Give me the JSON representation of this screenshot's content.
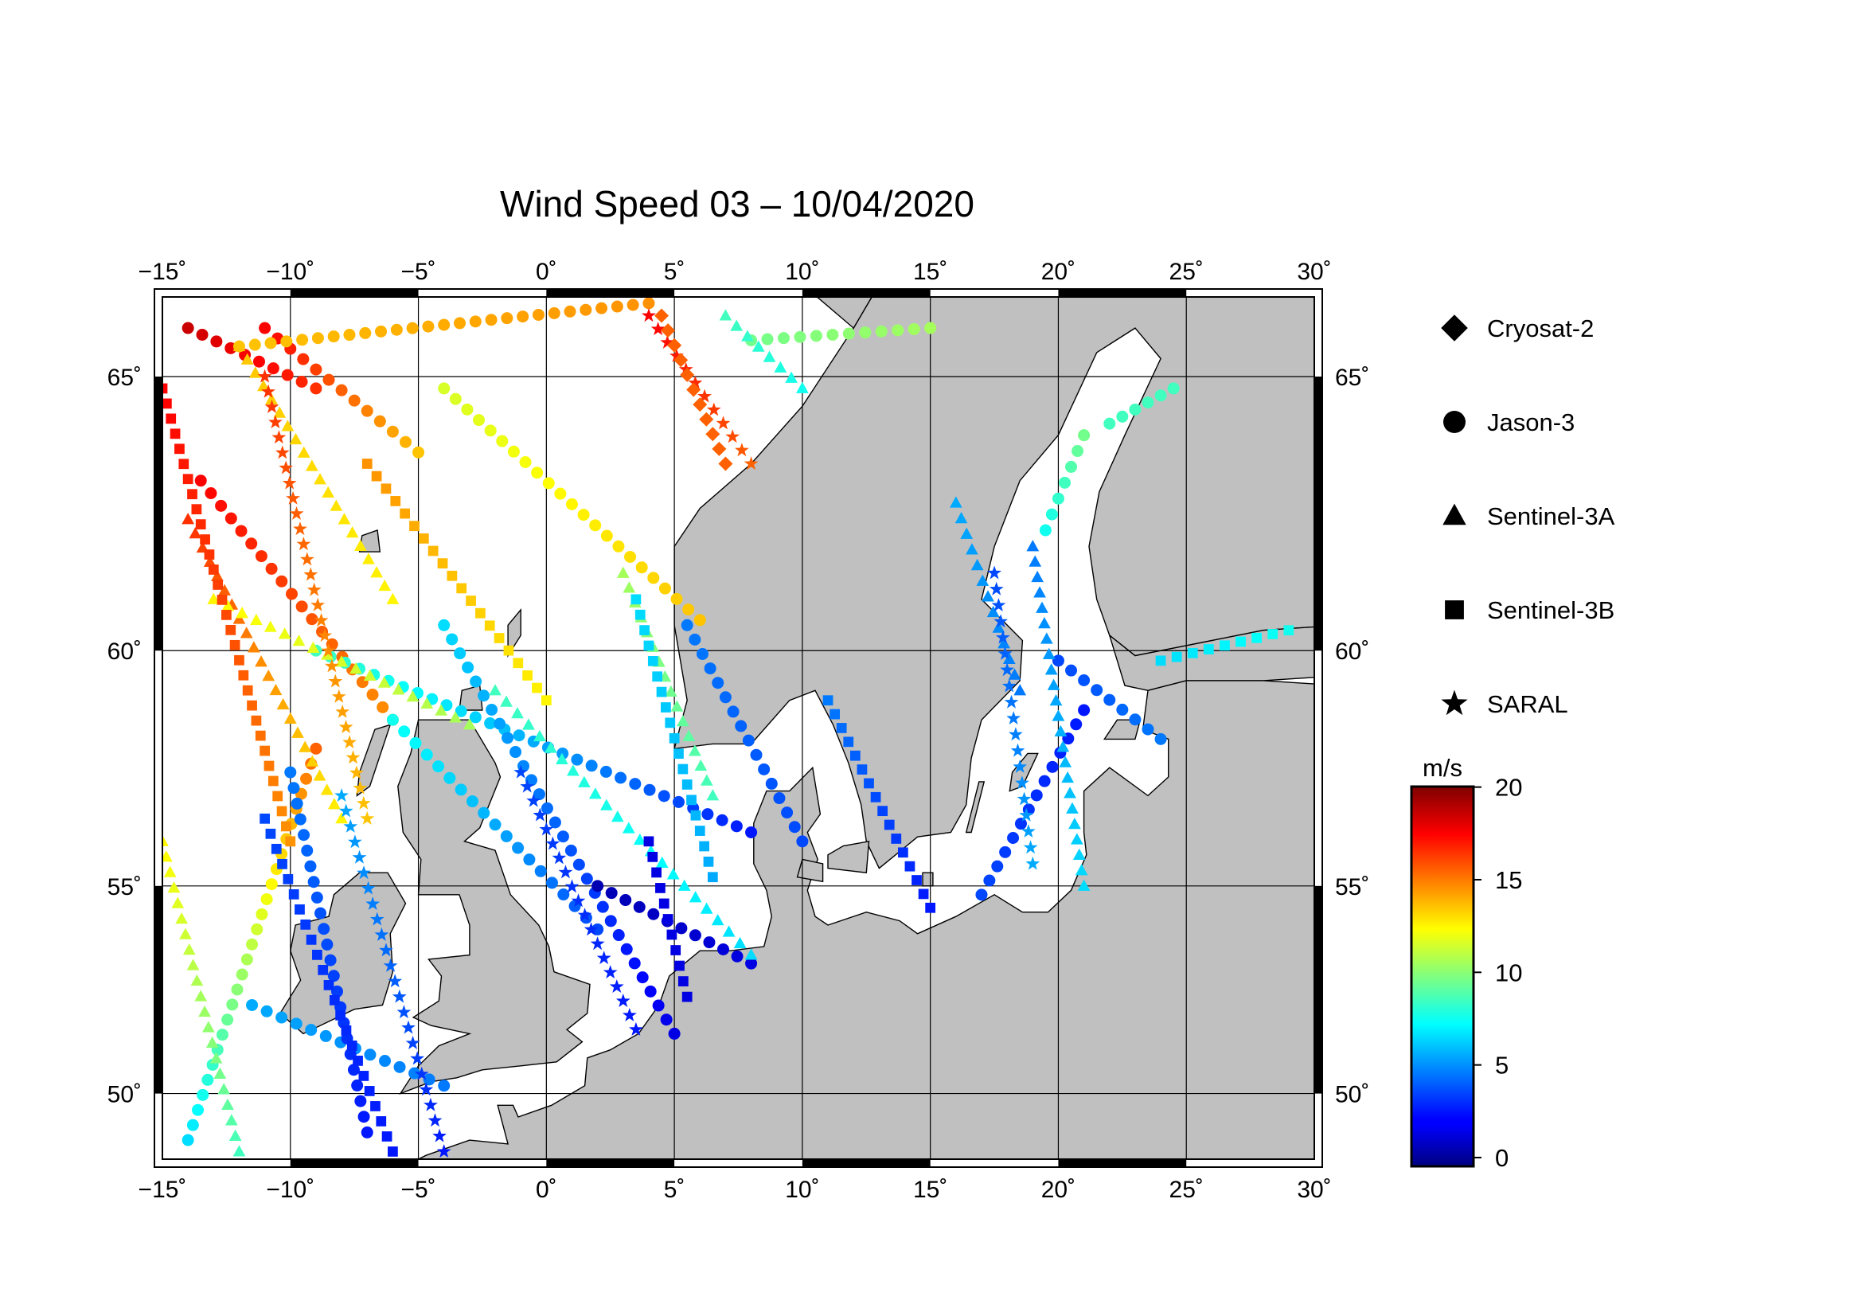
{
  "title": "Wind Speed 03 – 10/04/2020",
  "map": {
    "lon_range": [
      -15,
      30
    ],
    "lat_range": [
      48.3,
      66.3
    ],
    "lon_ticks": [
      -15,
      -10,
      -5,
      0,
      5,
      10,
      15,
      20,
      25,
      30
    ],
    "lon_tick_labels": [
      "−15˚",
      "−10˚",
      "−5˚",
      "0˚",
      "5˚",
      "10˚",
      "15˚",
      "20˚",
      "25˚",
      "30˚"
    ],
    "lat_ticks": [
      50,
      55,
      60,
      65
    ],
    "lat_tick_labels": [
      "50˚",
      "55˚",
      "60˚",
      "65˚"
    ],
    "land_color": "#c0c0c0",
    "sea_color": "#ffffff",
    "grid": true
  },
  "legend": [
    {
      "label": "Cryosat-2",
      "symbol": "diamond"
    },
    {
      "label": "Jason-3",
      "symbol": "circle"
    },
    {
      "label": "Sentinel-3A",
      "symbol": "triangle"
    },
    {
      "label": "Sentinel-3B",
      "symbol": "square"
    },
    {
      "label": "SARAL",
      "symbol": "star"
    }
  ],
  "colorbar": {
    "unit": "m/s",
    "min": 0,
    "max": 20.5,
    "ticks": [
      0,
      5,
      10,
      15,
      20
    ],
    "tick_labels": [
      "0",
      "5",
      "10",
      "15",
      "20"
    ],
    "colormap": "jet"
  },
  "chart_data": {
    "type": "scatter",
    "title": "Wind Speed 03 – 10/04/2020",
    "xlabel": "",
    "ylabel": "",
    "xlim": [
      -15,
      30
    ],
    "ylim": [
      48.3,
      66.3
    ],
    "value_unit": "m/s",
    "value_range": [
      0,
      20
    ],
    "series": [
      {
        "name": "Jason-3",
        "symbol": "circle",
        "tracks": [
          {
            "lon": [
              -13.5,
              -6
            ],
            "lat": [
              63.2,
              58.6
            ],
            "speed": [
              18,
              15
            ]
          },
          {
            "lon": [
              -6,
              2
            ],
            "lat": [
              58.6,
              54
            ],
            "speed": [
              8,
              4
            ]
          },
          {
            "lon": [
              -4,
              6
            ],
            "lat": [
              64.8,
              60.6
            ],
            "speed": [
              12,
              14
            ]
          },
          {
            "lon": [
              -11,
              -5
            ],
            "lat": [
              65.8,
              63.7
            ],
            "speed": [
              18,
              14
            ]
          },
          {
            "lon": [
              -14,
              -9
            ],
            "lat": [
              65.8,
              64.8
            ],
            "speed": [
              19,
              17
            ]
          },
          {
            "lon": [
              -9,
              8
            ],
            "lat": [
              60,
              56.2
            ],
            "speed": [
              9,
              3
            ]
          },
          {
            "lon": [
              -11.5,
              -4
            ],
            "lat": [
              52.2,
              50.2
            ],
            "speed": [
              6,
              5
            ]
          },
          {
            "lon": [
              -4,
              5
            ],
            "lat": [
              60.5,
              51.5
            ],
            "speed": [
              7,
              2
            ]
          },
          {
            "lon": [
              2,
              8
            ],
            "lat": [
              55,
              53.2
            ],
            "speed": [
              1,
              2
            ]
          },
          {
            "lon": [
              -9,
              -14
            ],
            "lat": [
              58,
              48.8
            ],
            "speed": [
              16,
              7
            ]
          },
          {
            "lon": [
              -10,
              -7
            ],
            "lat": [
              57.5,
              49
            ],
            "speed": [
              5,
              3
            ]
          },
          {
            "lon": [
              5.5,
              10
            ],
            "lat": [
              60.5,
              56
            ],
            "speed": [
              5,
              4
            ]
          },
          {
            "lon": [
              17,
              21
            ],
            "lat": [
              54.8,
              58.8
            ],
            "speed": [
              4,
              3
            ]
          },
          {
            "lon": [
              19.5,
              21
            ],
            "lat": [
              62.3,
              64
            ],
            "speed": [
              8,
              10
            ]
          },
          {
            "lon": [
              22,
              24.5
            ],
            "lat": [
              64.2,
              64.8
            ],
            "speed": [
              9,
              9
            ]
          },
          {
            "lon": [
              20,
              24
            ],
            "lat": [
              59.8,
              58.2
            ],
            "speed": [
              4,
              5
            ]
          },
          {
            "lon": [
              8,
              15
            ],
            "lat": [
              65.6,
              65.8
            ],
            "speed": [
              10,
              11
            ]
          },
          {
            "lon": [
              -12,
              4
            ],
            "lat": [
              65.5,
              66.2
            ],
            "speed": [
              14,
              15
            ]
          }
        ]
      },
      {
        "name": "Sentinel-3A",
        "symbol": "triangle",
        "tracks": [
          {
            "lon": [
              -14,
              -8
            ],
            "lat": [
              62.5,
              56.5
            ],
            "speed": [
              17,
              13
            ]
          },
          {
            "lon": [
              -13,
              -3
            ],
            "lat": [
              61,
              58.5
            ],
            "speed": [
              13,
              11
            ]
          },
          {
            "lon": [
              -15,
              -12
            ],
            "lat": [
              56,
              48.5
            ],
            "speed": [
              13,
              9
            ]
          },
          {
            "lon": [
              -2,
              8
            ],
            "lat": [
              59.2,
              53.4
            ],
            "speed": [
              9,
              7
            ]
          },
          {
            "lon": [
              3,
              6.5
            ],
            "lat": [
              61.5,
              57
            ],
            "speed": [
              11,
              9
            ]
          },
          {
            "lon": [
              -12,
              -6
            ],
            "lat": [
              65.5,
              61
            ],
            "speed": [
              14,
              13
            ]
          },
          {
            "lon": [
              19,
              21
            ],
            "lat": [
              62,
              55
            ],
            "speed": [
              5,
              7
            ]
          },
          {
            "lon": [
              16,
              18.5
            ],
            "lat": [
              62.8,
              59.2
            ],
            "speed": [
              6,
              5
            ]
          },
          {
            "lon": [
              7,
              10
            ],
            "lat": [
              66,
              64.8
            ],
            "speed": [
              9,
              8
            ]
          }
        ]
      },
      {
        "name": "Sentinel-3B",
        "symbol": "square",
        "tracks": [
          {
            "lon": [
              -15,
              -10
            ],
            "lat": [
              64.8,
              56
            ],
            "speed": [
              18,
              15
            ]
          },
          {
            "lon": [
              -7,
              0
            ],
            "lat": [
              63.5,
              59
            ],
            "speed": [
              15,
              13
            ]
          },
          {
            "lon": [
              -11,
              -6
            ],
            "lat": [
              56.5,
              48.5
            ],
            "speed": [
              4,
              3
            ]
          },
          {
            "lon": [
              3.5,
              6.5
            ],
            "lat": [
              61,
              55.2
            ],
            "speed": [
              7,
              6
            ]
          },
          {
            "lon": [
              4,
              5.5
            ],
            "lat": [
              56,
              52.4
            ],
            "speed": [
              2,
              2
            ]
          },
          {
            "lon": [
              11,
              15
            ],
            "lat": [
              59,
              54.5
            ],
            "speed": [
              5,
              3
            ]
          },
          {
            "lon": [
              24,
              29
            ],
            "lat": [
              59.8,
              60.4
            ],
            "speed": [
              7,
              8
            ]
          }
        ]
      },
      {
        "name": "SARAL",
        "symbol": "star",
        "tracks": [
          {
            "lon": [
              -11,
              -7
            ],
            "lat": [
              65,
              56.5
            ],
            "speed": [
              17,
              14
            ]
          },
          {
            "lon": [
              -8,
              -4
            ],
            "lat": [
              57,
              48.5
            ],
            "speed": [
              6,
              3
            ]
          },
          {
            "lon": [
              -1,
              3.5
            ],
            "lat": [
              57.5,
              51.6
            ],
            "speed": [
              4,
              3
            ]
          },
          {
            "lon": [
              4,
              8
            ],
            "lat": [
              66,
              63.5
            ],
            "speed": [
              18,
              16
            ]
          },
          {
            "lon": [
              17.5,
              19
            ],
            "lat": [
              61.5,
              55.5
            ],
            "speed": [
              4,
              6
            ]
          }
        ]
      },
      {
        "name": "Cryosat-2",
        "symbol": "diamond",
        "tracks": [
          {
            "lon": [
              4.5,
              7
            ],
            "lat": [
              66,
              63.5
            ],
            "speed": [
              16,
              16
            ]
          }
        ]
      }
    ]
  }
}
